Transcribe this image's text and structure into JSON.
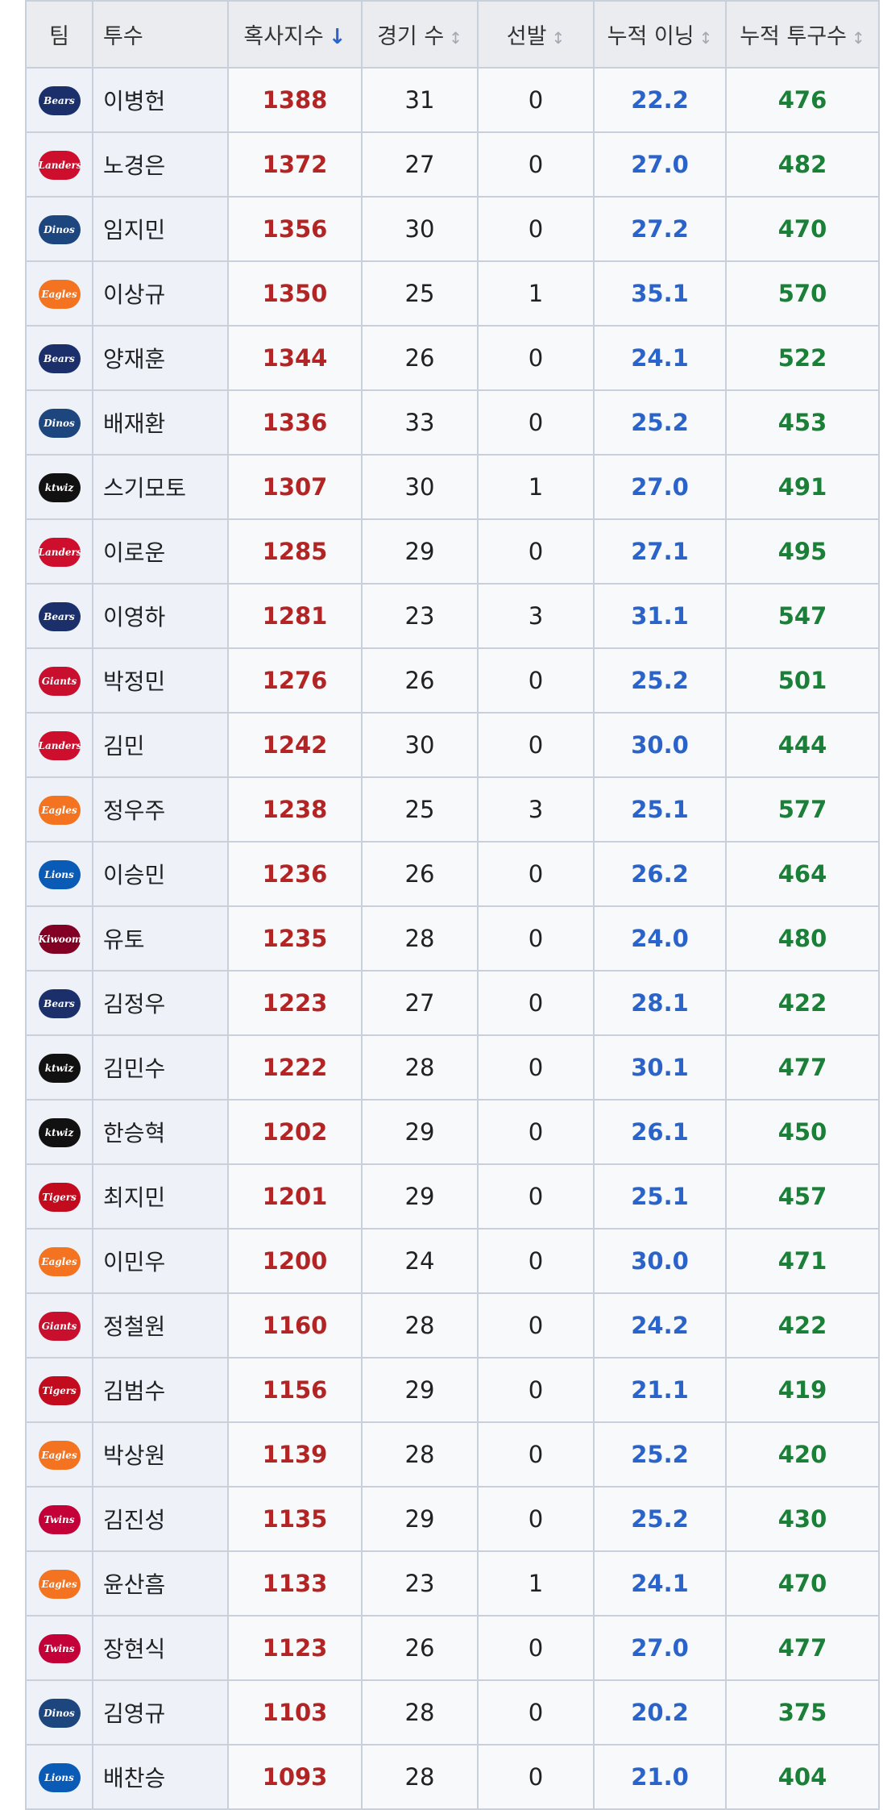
{
  "table": {
    "header": [
      "팀",
      "투수",
      "혹사지수",
      "경기 수",
      "선발",
      "누적 이닝",
      "누적 투구수"
    ],
    "rows": [
      {
        "team": "Bears",
        "team_color": "#1b2f6b",
        "pitcher": "이병헌",
        "index": 1388,
        "games": 31,
        "starts": 0,
        "innings": "22.2",
        "pitches": 476
      },
      {
        "team": "Landers",
        "team_color": "#ce0e2d",
        "pitcher": "노경은",
        "index": 1372,
        "games": 27,
        "starts": 0,
        "innings": "27.0",
        "pitches": 482
      },
      {
        "team": "Dinos",
        "team_color": "#1d467f",
        "pitcher": "임지민",
        "index": 1356,
        "games": 30,
        "starts": 0,
        "innings": "27.2",
        "pitches": 470
      },
      {
        "team": "Eagles",
        "team_color": "#f37321",
        "pitcher": "이상규",
        "index": 1350,
        "games": 25,
        "starts": 1,
        "innings": "35.1",
        "pitches": 570
      },
      {
        "team": "Bears",
        "team_color": "#1b2f6b",
        "pitcher": "양재훈",
        "index": 1344,
        "games": 26,
        "starts": 0,
        "innings": "24.1",
        "pitches": 522
      },
      {
        "team": "Dinos",
        "team_color": "#1d467f",
        "pitcher": "배재환",
        "index": 1336,
        "games": 33,
        "starts": 0,
        "innings": "25.2",
        "pitches": 453
      },
      {
        "team": "ktwiz",
        "team_color": "#111111",
        "pitcher": "스기모토",
        "index": 1307,
        "games": 30,
        "starts": 1,
        "innings": "27.0",
        "pitches": 491
      },
      {
        "team": "Landers",
        "team_color": "#ce0e2d",
        "pitcher": "이로운",
        "index": 1285,
        "games": 29,
        "starts": 0,
        "innings": "27.1",
        "pitches": 495
      },
      {
        "team": "Bears",
        "team_color": "#1b2f6b",
        "pitcher": "이영하",
        "index": 1281,
        "games": 23,
        "starts": 3,
        "innings": "31.1",
        "pitches": 547
      },
      {
        "team": "Giants",
        "team_color": "#c8102e",
        "pitcher": "박정민",
        "index": 1276,
        "games": 26,
        "starts": 0,
        "innings": "25.2",
        "pitches": 501
      },
      {
        "team": "Landers",
        "team_color": "#ce0e2d",
        "pitcher": "김민",
        "index": 1242,
        "games": 30,
        "starts": 0,
        "innings": "30.0",
        "pitches": 444
      },
      {
        "team": "Eagles",
        "team_color": "#f37321",
        "pitcher": "정우주",
        "index": 1238,
        "games": 25,
        "starts": 3,
        "innings": "25.1",
        "pitches": 577
      },
      {
        "team": "Lions",
        "team_color": "#0a5bb5",
        "pitcher": "이승민",
        "index": 1236,
        "games": 26,
        "starts": 0,
        "innings": "26.2",
        "pitches": 464
      },
      {
        "team": "Kiwoom",
        "team_color": "#820024",
        "pitcher": "유토",
        "index": 1235,
        "games": 28,
        "starts": 0,
        "innings": "24.0",
        "pitches": 480
      },
      {
        "team": "Bears",
        "team_color": "#1b2f6b",
        "pitcher": "김정우",
        "index": 1223,
        "games": 27,
        "starts": 0,
        "innings": "28.1",
        "pitches": 422
      },
      {
        "team": "ktwiz",
        "team_color": "#111111",
        "pitcher": "김민수",
        "index": 1222,
        "games": 28,
        "starts": 0,
        "innings": "30.1",
        "pitches": 477
      },
      {
        "team": "ktwiz",
        "team_color": "#111111",
        "pitcher": "한승혁",
        "index": 1202,
        "games": 29,
        "starts": 0,
        "innings": "26.1",
        "pitches": 450
      },
      {
        "team": "Tigers",
        "team_color": "#c30b1e",
        "pitcher": "최지민",
        "index": 1201,
        "games": 29,
        "starts": 0,
        "innings": "25.1",
        "pitches": 457
      },
      {
        "team": "Eagles",
        "team_color": "#f37321",
        "pitcher": "이민우",
        "index": 1200,
        "games": 24,
        "starts": 0,
        "innings": "30.0",
        "pitches": 471
      },
      {
        "team": "Giants",
        "team_color": "#c8102e",
        "pitcher": "정철원",
        "index": 1160,
        "games": 28,
        "starts": 0,
        "innings": "24.2",
        "pitches": 422
      },
      {
        "team": "Tigers",
        "team_color": "#c30b1e",
        "pitcher": "김범수",
        "index": 1156,
        "games": 29,
        "starts": 0,
        "innings": "21.1",
        "pitches": 419
      },
      {
        "team": "Eagles",
        "team_color": "#f37321",
        "pitcher": "박상원",
        "index": 1139,
        "games": 28,
        "starts": 0,
        "innings": "25.2",
        "pitches": 420
      },
      {
        "team": "Twins",
        "team_color": "#c30037",
        "pitcher": "김진성",
        "index": 1135,
        "games": 29,
        "starts": 0,
        "innings": "25.2",
        "pitches": 430
      },
      {
        "team": "Eagles",
        "team_color": "#f37321",
        "pitcher": "윤산흠",
        "index": 1133,
        "games": 23,
        "starts": 1,
        "innings": "24.1",
        "pitches": 470
      },
      {
        "team": "Twins",
        "team_color": "#c30037",
        "pitcher": "장현식",
        "index": 1123,
        "games": 26,
        "starts": 0,
        "innings": "27.0",
        "pitches": 477
      },
      {
        "team": "Dinos",
        "team_color": "#1d467f",
        "pitcher": "김영규",
        "index": 1103,
        "games": 28,
        "starts": 0,
        "innings": "20.2",
        "pitches": 375
      },
      {
        "team": "Lions",
        "team_color": "#0a5bb5",
        "pitcher": "배찬승",
        "index": 1093,
        "games": 28,
        "starts": 0,
        "innings": "21.0",
        "pitches": 404
      }
    ]
  }
}
